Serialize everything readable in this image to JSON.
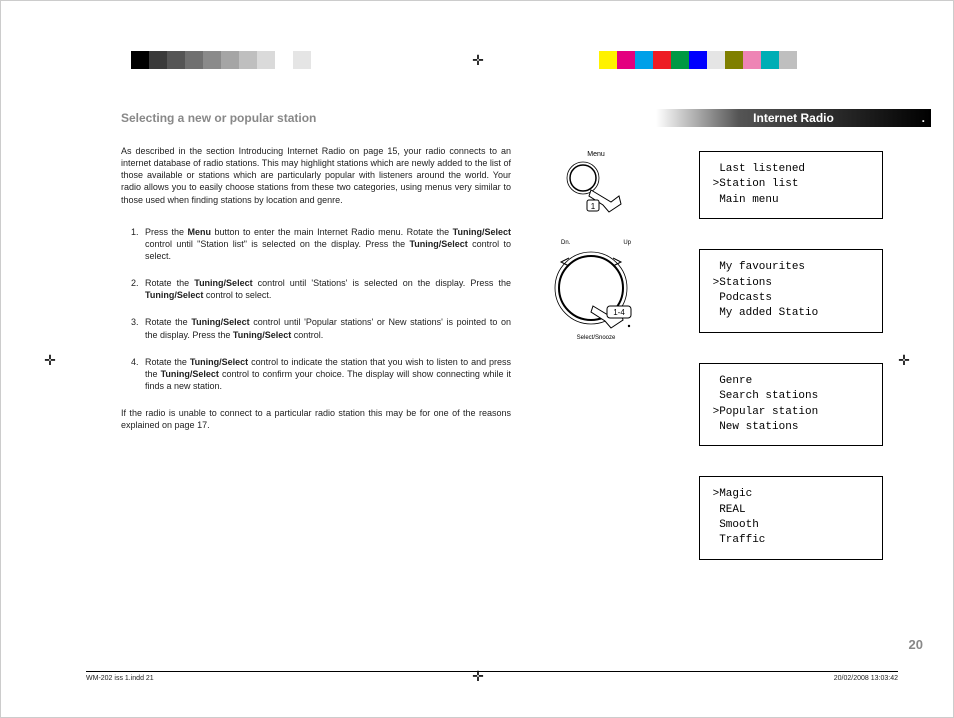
{
  "colorbars": {
    "left": [
      "#000000",
      "#3a3a3a",
      "#555555",
      "#707070",
      "#8a8a8a",
      "#a5a5a5",
      "#bfbfbf",
      "#dadada",
      "#ffffff",
      "#e5e5e5"
    ],
    "right": [
      "#ffffff",
      "#fff200",
      "#e4007f",
      "#00a0e9",
      "#ed1c24",
      "#009944",
      "#0000ff",
      "#e5e5e5",
      "#7f7f00",
      "#ee84b5",
      "#00aeb5",
      "#bfbfbf"
    ]
  },
  "header": {
    "title": "Internet Radio"
  },
  "section": {
    "title": "Selecting a new or popular station",
    "intro": "As described in the section Introducing Internet Radio on page 15, your radio connects to an internet database of radio stations. This may highlight stations which are newly added to the list of those available or stations which are particularly popular with listeners around the world.  Your radio allows you to easily choose stations from these two categories, using menus very similar to those used when finding stations by location and genre.",
    "steps": [
      {
        "pre": "Press the ",
        "b1": "Menu",
        "mid1": " button to enter the main Internet Radio menu. Rotate the ",
        "b2": "Tuning/Select",
        "mid2": " control until \"Station list\" is selected on the display. Press the ",
        "b3": "Tuning/Select",
        "post": " control to select."
      },
      {
        "pre": "Rotate the ",
        "b1": "Tuning/Select",
        "mid1": " control until 'Stations' is selected on the display. Press the ",
        "b2": "Tuning/Select",
        "post": " control to select."
      },
      {
        "pre": "Rotate the ",
        "b1": "Tuning/Select",
        "mid1": " control until 'Popular stations' or New stations' is pointed to on the display. Press the ",
        "b2": "Tuning/Select",
        "post": " control."
      },
      {
        "pre": "Rotate the ",
        "b1": "Tuning/Select",
        "mid1": " control to indicate the station that you wish to listen to  and press the ",
        "b2": "Tuning/Select",
        "post": " control to confirm your choice. The display will show connecting while it finds a new station."
      }
    ],
    "note": "If the radio is unable to connect to a particular radio station this may be for one of the reasons explained on page 17."
  },
  "icons": {
    "menu": {
      "label": "Menu",
      "badge": "1"
    },
    "dial": {
      "top_left": "Dn.",
      "top_right": "Up",
      "badge": "1-4",
      "bottom_label": "Select/Snooze"
    }
  },
  "displays": [
    {
      "lines": [
        "  Last listened",
        " >Station list",
        "  Main menu"
      ]
    },
    {
      "lines": [
        "  My favourites",
        " >Stations",
        "  Podcasts",
        "  My added Statio"
      ]
    },
    {
      "lines": [
        "  Genre",
        "  Search stations",
        " >Popular station",
        "  New stations"
      ]
    },
    {
      "lines": [
        " >Magic",
        "  REAL",
        "  Smooth",
        "  Traffic"
      ]
    }
  ],
  "page_number": "20",
  "footer": {
    "left": "WM-202 iss 1.indd   21",
    "right": "20/02/2008   13:03:42"
  }
}
